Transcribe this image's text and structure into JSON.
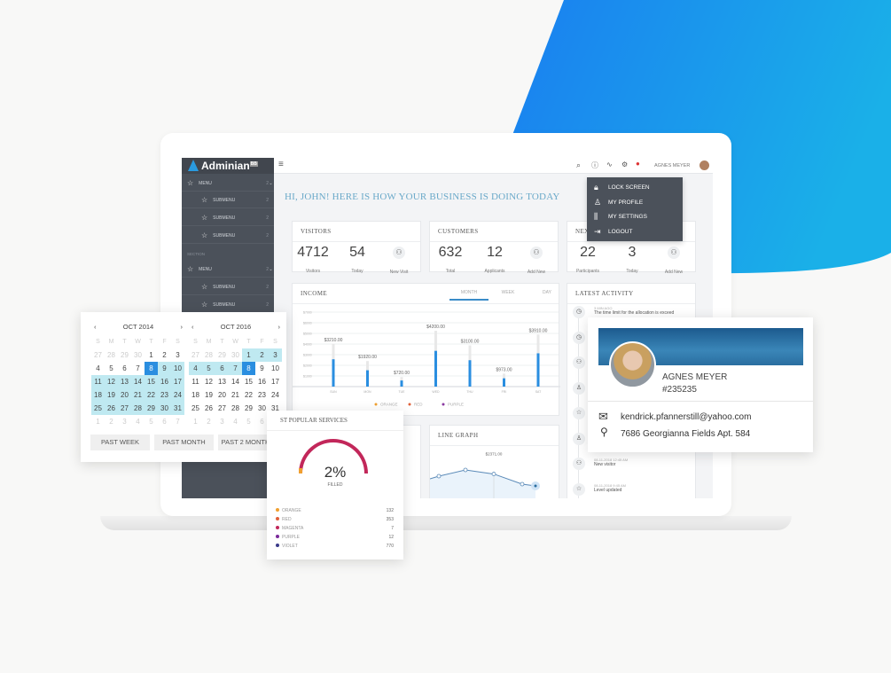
{
  "colors": {
    "accent": "#2a8ee0",
    "sidebar": "#4b515a",
    "highlight": "#bfe9f1",
    "greeting": "#6aa9c9",
    "brand_blue": "#1e88e5"
  },
  "app": {
    "name": "Adminian",
    "badge": "BB"
  },
  "sidebar": {
    "items": [
      {
        "label": "MENU",
        "count": "2",
        "icon": "star-icon",
        "level": 0
      },
      {
        "label": "SUBMENU",
        "count": "2",
        "icon": "star-icon",
        "level": 1
      },
      {
        "label": "SUBMENU",
        "count": "2",
        "icon": "star-icon",
        "level": 1
      },
      {
        "label": "SUBMENU",
        "count": "2",
        "icon": "star-icon",
        "level": 1
      },
      {
        "label": "MENU",
        "count": "2",
        "icon": "star-icon",
        "level": 0
      },
      {
        "label": "SUBMENU",
        "count": "2",
        "icon": "star-icon",
        "level": 1
      },
      {
        "label": "SUBMENU",
        "count": "2",
        "icon": "star-icon",
        "level": 1
      }
    ],
    "section": "SECTION"
  },
  "header": {
    "user": "AGNES MEYER",
    "icons": [
      "search-icon",
      "help-icon",
      "activity-icon",
      "gear-icon",
      "notification-icon"
    ]
  },
  "user_menu": [
    {
      "label": "LOCK SCREEN",
      "icon": "lock-icon"
    },
    {
      "label": "MY PROFILE",
      "icon": "user-icon"
    },
    {
      "label": "MY SETTINGS",
      "icon": "sliders-icon"
    },
    {
      "label": "LOGOUT",
      "icon": "logout-icon"
    }
  ],
  "greeting": "HI, JOHN! HERE IS HOW YOUR BUSINESS IS DOING TODAY",
  "cards": [
    {
      "title": "VISITORS",
      "a": "4712",
      "a_label": "Visitors",
      "b": "54",
      "b_label": "Today",
      "action": "New Visit"
    },
    {
      "title": "CUSTOMERS",
      "a": "632",
      "a_label": "Total",
      "b": "12",
      "b_label": "Applicants",
      "action": "Add New"
    },
    {
      "title": "NEX",
      "a": "22",
      "a_label": "Participants",
      "b": "3",
      "b_label": "Today",
      "action": "Add New"
    }
  ],
  "income": {
    "title": "INCOME",
    "tabs": [
      "MONTH",
      "WEEK",
      "DAY"
    ],
    "active_tab": "MONTH"
  },
  "chart_data": [
    {
      "type": "bar",
      "title": "INCOME",
      "categories": [
        "SUN",
        "MON",
        "TUE",
        "WED",
        "THU",
        "FRI",
        "SAT"
      ],
      "values": [
        3210,
        1920,
        720,
        4200,
        3100,
        973,
        3910
      ],
      "data_labels": [
        "$3210.00",
        "$1920.00",
        "$720.00",
        "$4200.00",
        "$3100.00",
        "$973.00",
        "$3910.00"
      ],
      "yticks": [
        "$1000",
        "$2000",
        "$3000",
        "$4000",
        "$5000",
        "$6000",
        "$7000"
      ],
      "ylim": [
        0,
        7000
      ],
      "grid": true,
      "legend": [
        "ORANGE",
        "RED",
        "PURPLE"
      ],
      "legend_colors": [
        "#f0a030",
        "#e0603a",
        "#8a3aa0"
      ],
      "legend_position": "bottom"
    },
    {
      "type": "line",
      "title": "LINE GRAPH",
      "tooltip": "$2371.00",
      "values": [
        2100,
        2250,
        2600,
        2371,
        1800,
        1700
      ]
    }
  ],
  "calendars": [
    {
      "month": "OCT 2014",
      "weekdays": [
        "S",
        "M",
        "T",
        "W",
        "T",
        "F",
        "S"
      ],
      "weeks": [
        [
          "27",
          "28",
          "29",
          "30",
          "1",
          "2",
          "3"
        ],
        [
          "4",
          "5",
          "6",
          "7",
          "8",
          "9",
          "10"
        ],
        [
          "11",
          "12",
          "13",
          "14",
          "15",
          "16",
          "17"
        ],
        [
          "18",
          "19",
          "20",
          "21",
          "22",
          "23",
          "24"
        ],
        [
          "25",
          "26",
          "27",
          "28",
          "29",
          "30",
          "31"
        ],
        [
          "1",
          "2",
          "3",
          "4",
          "5",
          "6",
          "7"
        ]
      ],
      "selected": "8",
      "range_start": "8",
      "range_end": "31"
    },
    {
      "month": "OCT 2016",
      "weekdays": [
        "S",
        "M",
        "T",
        "W",
        "T",
        "F",
        "S"
      ],
      "weeks": [
        [
          "27",
          "28",
          "29",
          "30",
          "1",
          "2",
          "3"
        ],
        [
          "4",
          "5",
          "6",
          "7",
          "8",
          "9",
          "10"
        ],
        [
          "11",
          "12",
          "13",
          "14",
          "15",
          "16",
          "17"
        ],
        [
          "18",
          "19",
          "20",
          "21",
          "22",
          "23",
          "24"
        ],
        [
          "25",
          "26",
          "27",
          "28",
          "29",
          "30",
          "31"
        ],
        [
          "1",
          "2",
          "3",
          "4",
          "5",
          "6",
          "7"
        ]
      ],
      "selected": "8",
      "range_start": "1",
      "range_end": "8"
    }
  ],
  "calendar_buttons": [
    "PAST WEEK",
    "PAST MONTH",
    "PAST 2 MONTHS"
  ],
  "services": {
    "title": "ST POPULAR SERVICES",
    "percent": "2%",
    "filled_label": "FILLED",
    "fill_fraction": 0.02,
    "items": [
      {
        "label": "ORANGE",
        "value": "132",
        "color": "#f0a030"
      },
      {
        "label": "RED",
        "value": "353",
        "color": "#e0603a"
      },
      {
        "label": "MAGENTA",
        "value": "7",
        "color": "#c2275a"
      },
      {
        "label": "PURPLE",
        "value": "12",
        "color": "#7a2a9a"
      },
      {
        "label": "VIOLET",
        "value": "770",
        "color": "#3a3a8a"
      }
    ]
  },
  "activity": {
    "title": "LATEST ACTIVITY",
    "items": [
      {
        "time": "3 MIN AGO",
        "text": "The time limit for the allocation is exceed",
        "icon": "clock-icon"
      },
      {
        "time": "",
        "text": "",
        "icon": "clock-icon"
      },
      {
        "time": "",
        "text": "",
        "icon": "user-card-icon"
      },
      {
        "time": "",
        "text": "",
        "icon": "user-icon"
      },
      {
        "time": "",
        "text": "",
        "icon": "star-icon"
      },
      {
        "time": "",
        "text": "",
        "icon": "user-icon"
      },
      {
        "time": "08-11-2018 12:45 AM",
        "text": "New visitor",
        "icon": "user-card-icon"
      },
      {
        "time": "08-11-2018 9:45 AM",
        "text": "Level updated",
        "icon": "star-icon"
      }
    ]
  },
  "profile": {
    "name": "AGNES MEYER",
    "id": "#235235",
    "email": "kendrick.pfannerstill@yahoo.com",
    "address": "7686 Georgianna Fields Apt. 584"
  }
}
